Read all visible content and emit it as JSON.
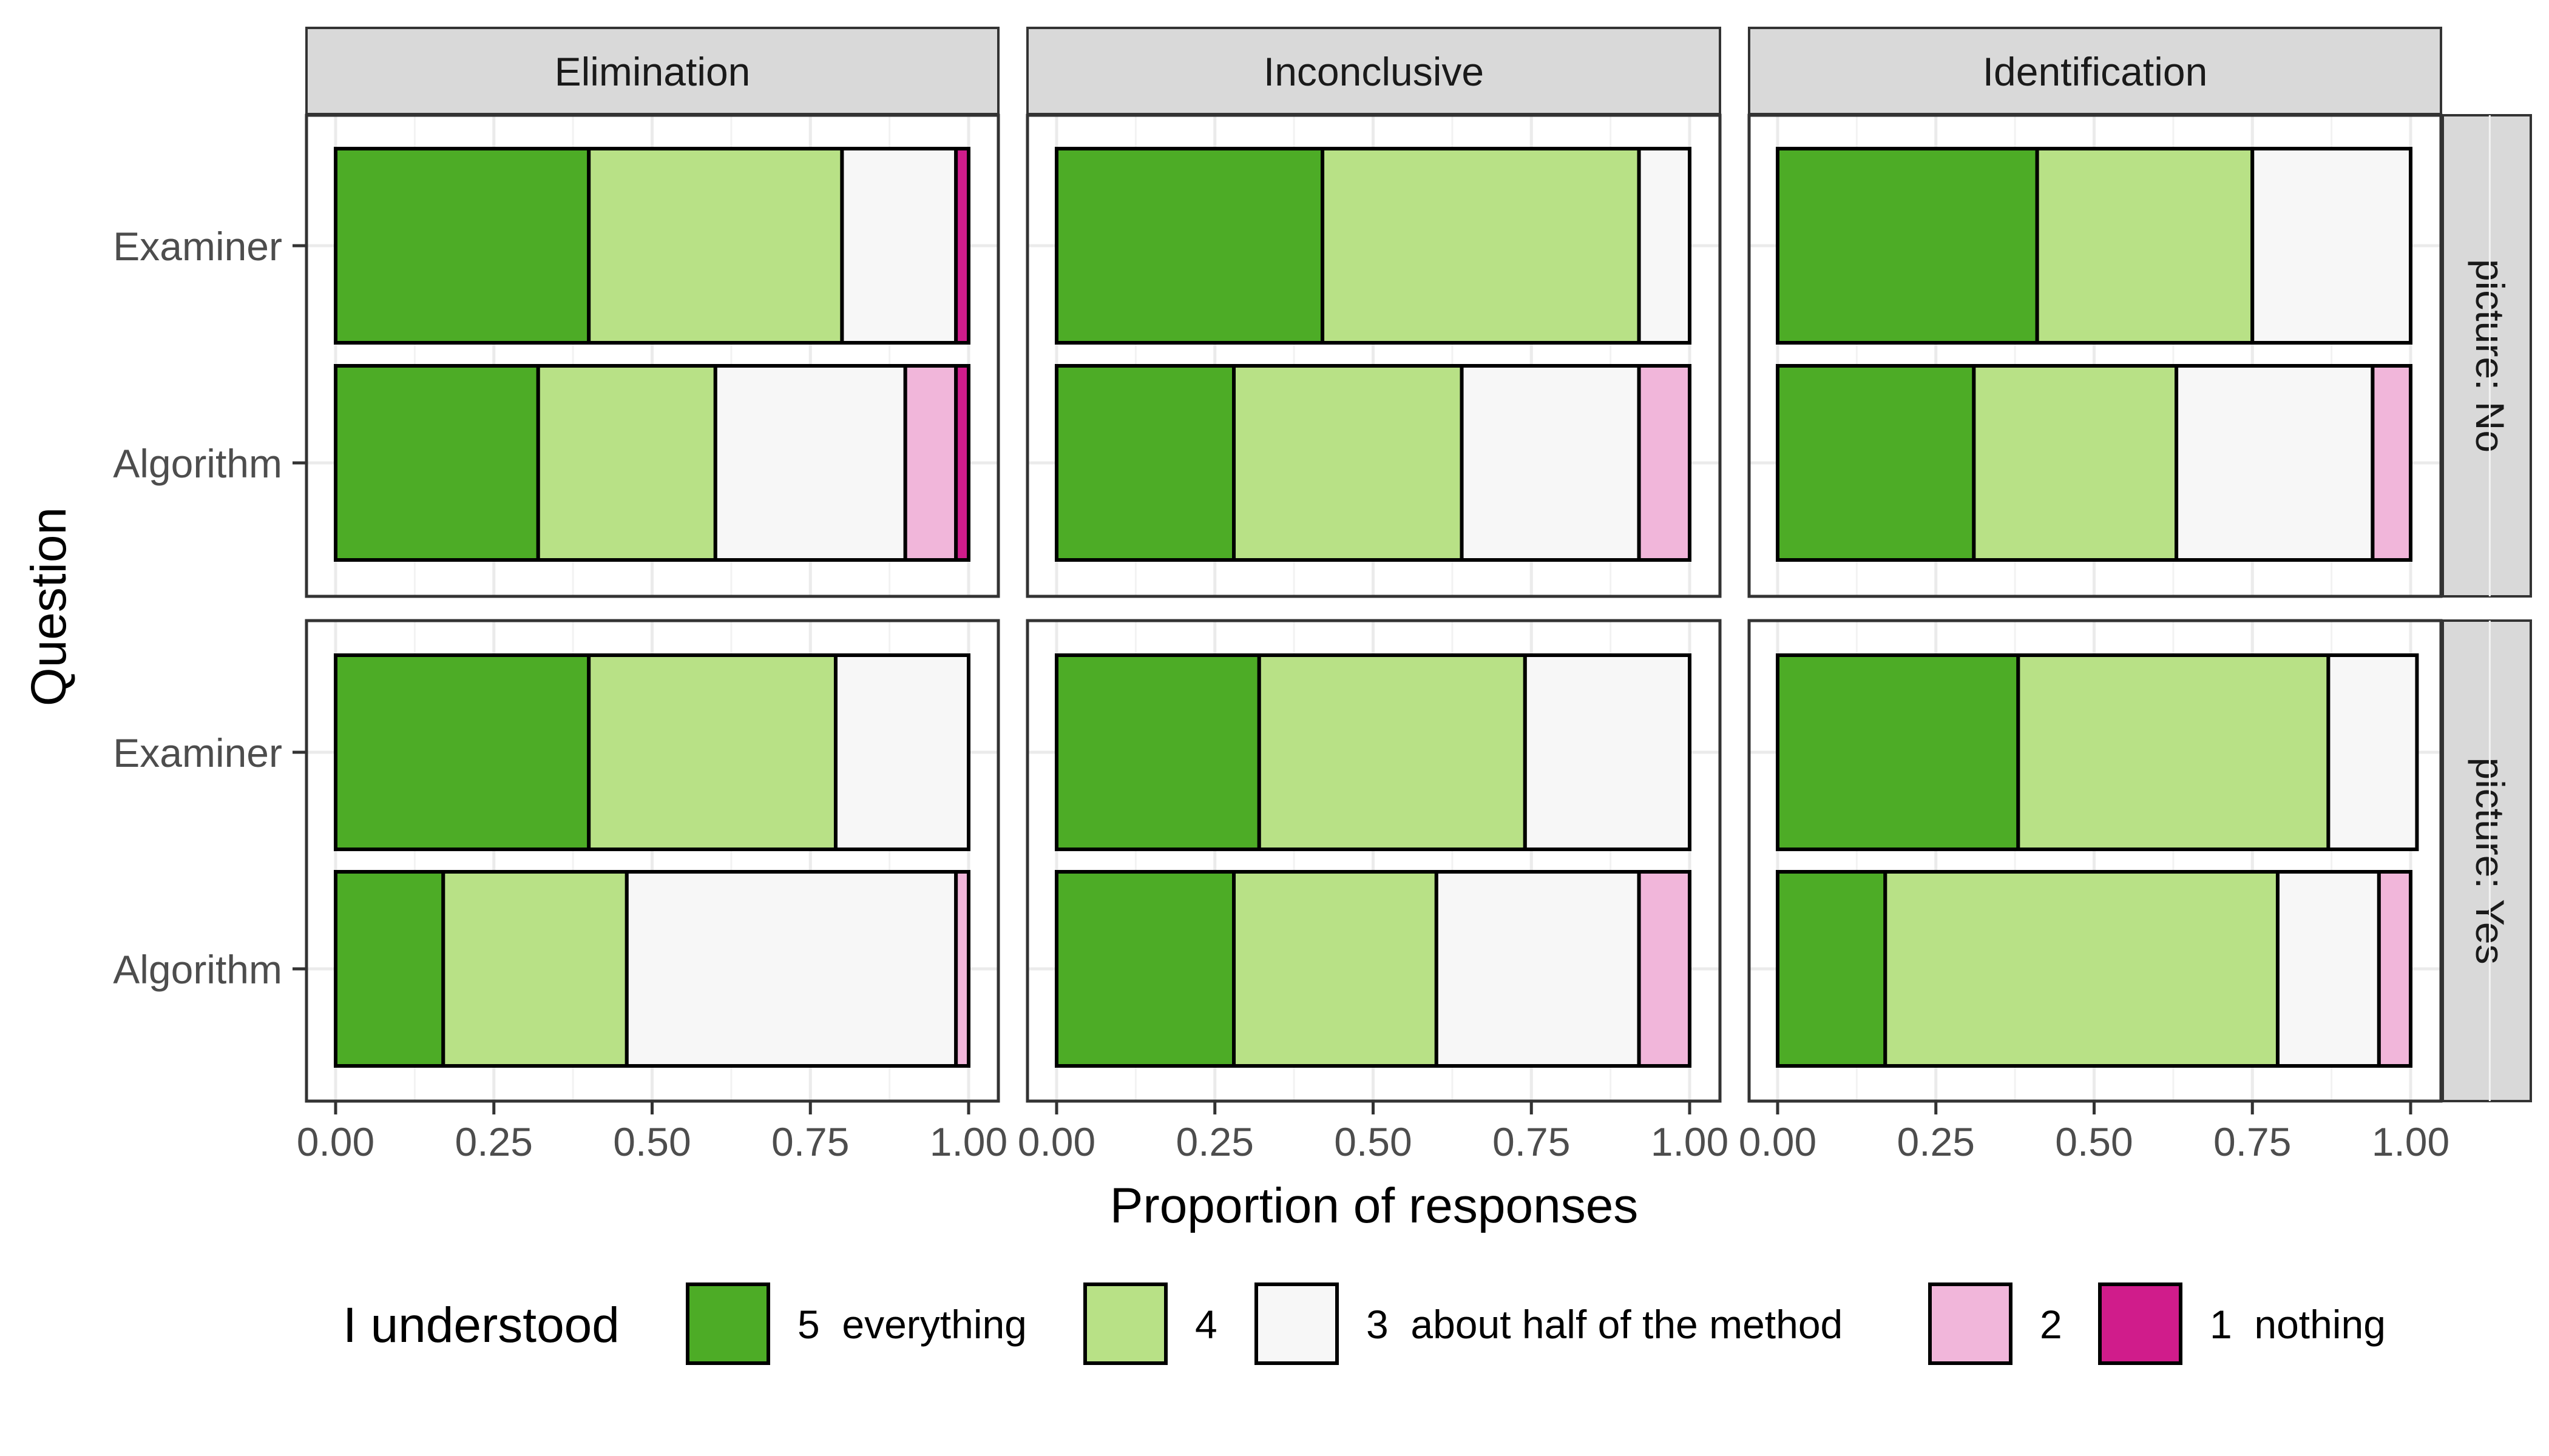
{
  "chart_data": {
    "type": "bar",
    "orientation": "horizontal",
    "stacked": true,
    "xlabel": "Proportion of responses",
    "ylabel": "Question",
    "xlim": [
      0,
      1
    ],
    "x_ticks": [
      "0.00",
      "0.25",
      "0.50",
      "0.75",
      "1.00"
    ],
    "x_tick_values": [
      0,
      0.25,
      0.5,
      0.75,
      1
    ],
    "grid": true,
    "legend": {
      "title": "I understood",
      "position": "bottom"
    },
    "series": [
      {
        "name": "5  everything",
        "color": "#4dac26"
      },
      {
        "name": "4",
        "color": "#b8e186"
      },
      {
        "name": "3  about half of the method",
        "color": "#f7f7f7"
      },
      {
        "name": "2",
        "color": "#f1b6da"
      },
      {
        "name": "1  nothing",
        "color": "#d01c8b"
      }
    ],
    "facet_columns": [
      "Elimination",
      "Inconclusive",
      "Identification"
    ],
    "facet_rows": [
      "picture: No",
      "picture: Yes"
    ],
    "categories": [
      "Examiner",
      "Algorithm"
    ],
    "panels": [
      {
        "column": "Elimination",
        "row": "picture: No",
        "bars": [
          {
            "category": "Examiner",
            "values": [
              0.4,
              0.4,
              0.18,
              0.0,
              0.02
            ]
          },
          {
            "category": "Algorithm",
            "values": [
              0.32,
              0.28,
              0.3,
              0.08,
              0.02
            ]
          }
        ]
      },
      {
        "column": "Inconclusive",
        "row": "picture: No",
        "bars": [
          {
            "category": "Examiner",
            "values": [
              0.42,
              0.5,
              0.08,
              0.0,
              0.0
            ]
          },
          {
            "category": "Algorithm",
            "values": [
              0.28,
              0.36,
              0.28,
              0.08,
              0.0
            ]
          }
        ]
      },
      {
        "column": "Identification",
        "row": "picture: No",
        "bars": [
          {
            "category": "Examiner",
            "values": [
              0.41,
              0.34,
              0.25,
              0.0,
              0.0
            ]
          },
          {
            "category": "Algorithm",
            "values": [
              0.31,
              0.32,
              0.31,
              0.06,
              0.0
            ]
          }
        ]
      },
      {
        "column": "Elimination",
        "row": "picture: Yes",
        "bars": [
          {
            "category": "Examiner",
            "values": [
              0.4,
              0.39,
              0.21,
              0.0,
              0.0
            ]
          },
          {
            "category": "Algorithm",
            "values": [
              0.17,
              0.29,
              0.52,
              0.02,
              0.0
            ]
          }
        ]
      },
      {
        "column": "Inconclusive",
        "row": "picture: Yes",
        "bars": [
          {
            "category": "Examiner",
            "values": [
              0.32,
              0.42,
              0.26,
              0.0,
              0.0
            ]
          },
          {
            "category": "Algorithm",
            "values": [
              0.28,
              0.32,
              0.32,
              0.08,
              0.0
            ]
          }
        ]
      },
      {
        "column": "Identification",
        "row": "picture: Yes",
        "bars": [
          {
            "category": "Examiner",
            "values": [
              0.38,
              0.49,
              0.14,
              0.0,
              0.0
            ]
          },
          {
            "category": "Algorithm",
            "values": [
              0.17,
              0.62,
              0.16,
              0.05,
              0.0
            ]
          }
        ]
      }
    ]
  }
}
